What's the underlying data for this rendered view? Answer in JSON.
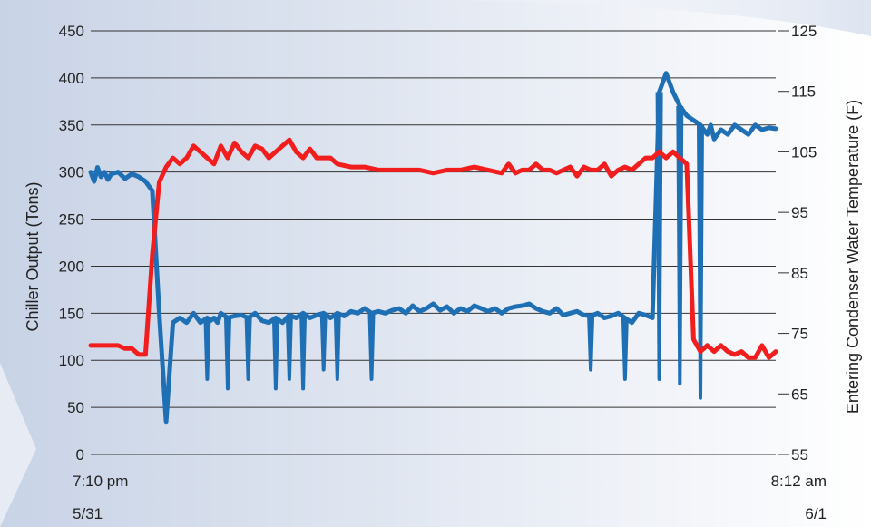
{
  "chart_data": {
    "type": "line",
    "title": "",
    "x_start": {
      "time": "7:10 pm",
      "date": "5/31"
    },
    "x_end": {
      "time": "8:12 am",
      "date": "6/1"
    },
    "y_left": {
      "label": "Chiller Output (Tons)",
      "range": [
        0,
        450
      ],
      "ticks": [
        0,
        50,
        100,
        150,
        200,
        250,
        300,
        350,
        400,
        450
      ]
    },
    "y_right": {
      "label": "Entering Condenser Water Temperature (F)",
      "range": [
        55,
        125
      ],
      "ticks": [
        55,
        65,
        75,
        85,
        95,
        105,
        115,
        125
      ]
    },
    "grid": true,
    "series": [
      {
        "axis": "left",
        "color": "#1f6fb5",
        "x": [
          0,
          0.5,
          1,
          1.5,
          2,
          2.5,
          3,
          4,
          5,
          6,
          7,
          8,
          9,
          10,
          11,
          12,
          13,
          14,
          15,
          16,
          17,
          17.5,
          18,
          18.5,
          19,
          20,
          21,
          22,
          23,
          24,
          25,
          26,
          27,
          28,
          29,
          30,
          31,
          32,
          33,
          34,
          35,
          36,
          37,
          38,
          39,
          40,
          41,
          42,
          43,
          44,
          45,
          46,
          47,
          48,
          49,
          50,
          51,
          52,
          53,
          54,
          55,
          56,
          57,
          58,
          59,
          60,
          61,
          62,
          63,
          64,
          65,
          66,
          67,
          68,
          69,
          70,
          71,
          72,
          73,
          74,
          75,
          76,
          77,
          78,
          79,
          80,
          81,
          82,
          83,
          84,
          85,
          86,
          87,
          88,
          89,
          89.5,
          90,
          90.5,
          91,
          92,
          93,
          94,
          95,
          96,
          97,
          98,
          99,
          100
        ],
        "y": [
          300,
          290,
          305,
          295,
          300,
          292,
          298,
          300,
          293,
          298,
          295,
          290,
          280,
          150,
          35,
          140,
          145,
          140,
          150,
          140,
          145,
          142,
          145,
          140,
          150,
          145,
          147,
          148,
          145,
          150,
          142,
          140,
          145,
          140,
          148,
          145,
          150,
          145,
          148,
          150,
          145,
          150,
          147,
          152,
          150,
          155,
          150,
          152,
          150,
          153,
          155,
          150,
          158,
          152,
          155,
          160,
          153,
          157,
          150,
          155,
          152,
          158,
          155,
          152,
          155,
          150,
          155,
          157,
          158,
          160,
          155,
          152,
          150,
          155,
          148,
          150,
          152,
          148,
          147,
          150,
          145,
          147,
          150,
          145,
          140,
          150,
          148,
          145,
          385,
          405,
          385,
          370,
          360,
          355,
          350,
          345,
          340,
          350,
          335,
          345,
          340,
          350,
          345,
          340,
          350,
          345,
          347,
          346
        ],
        "dips": [
          [
            17,
            80
          ],
          [
            20,
            70
          ],
          [
            23,
            80
          ],
          [
            27,
            70
          ],
          [
            29,
            80
          ],
          [
            31,
            70
          ],
          [
            34,
            90
          ],
          [
            36,
            80
          ],
          [
            41,
            80
          ],
          [
            73,
            90
          ],
          [
            78,
            80
          ],
          [
            83,
            80
          ],
          [
            86,
            75
          ],
          [
            89,
            60
          ]
        ]
      },
      {
        "axis": "right",
        "color": "#f21d1d",
        "x": [
          0,
          2,
          4,
          5,
          6,
          7,
          8,
          9,
          10,
          11,
          12,
          13,
          14,
          15,
          16,
          17,
          18,
          19,
          20,
          21,
          22,
          23,
          24,
          25,
          26,
          27,
          28,
          29,
          30,
          31,
          32,
          33,
          34,
          35,
          36,
          38,
          40,
          42,
          44,
          46,
          48,
          50,
          52,
          54,
          56,
          58,
          60,
          61,
          62,
          63,
          64,
          65,
          66,
          67,
          68,
          69,
          70,
          71,
          72,
          73,
          74,
          75,
          76,
          77,
          78,
          79,
          80,
          81,
          82,
          83,
          84,
          85,
          86,
          87,
          88,
          89,
          90,
          91,
          92,
          93,
          94,
          95,
          96,
          97,
          98,
          99,
          100
        ],
        "y": [
          73,
          73,
          73,
          72.5,
          72.5,
          71.5,
          71.5,
          88,
          100,
          102.5,
          104,
          103,
          104,
          106,
          105,
          104,
          103,
          106,
          104,
          106.5,
          105,
          104,
          106,
          105.5,
          104,
          105,
          106,
          107,
          105,
          104,
          105.5,
          104,
          104,
          104,
          103,
          102.5,
          102.5,
          102,
          102,
          102,
          102,
          101.5,
          102,
          102,
          102.5,
          102,
          101.5,
          103,
          101.5,
          102,
          102,
          103,
          102,
          102,
          101.5,
          102,
          102.5,
          101,
          102.5,
          102,
          102,
          103,
          101,
          102,
          102.5,
          102,
          103,
          104,
          104,
          105,
          104,
          105,
          104,
          103,
          74,
          72,
          73,
          72,
          73,
          72,
          71.5,
          72,
          71,
          71,
          73,
          71,
          72
        ]
      }
    ]
  }
}
